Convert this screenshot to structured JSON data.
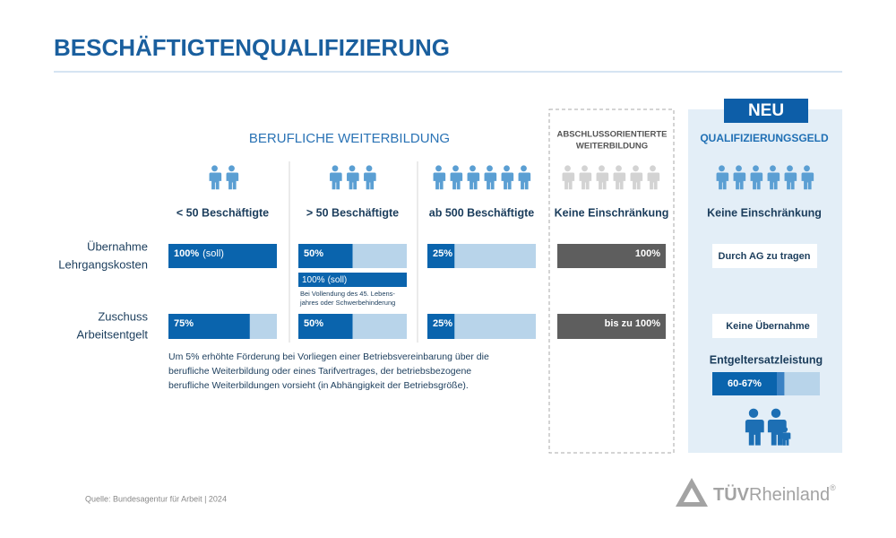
{
  "header": {
    "title": "BESCHÄFTIGTENQUALIFIZIERUNG"
  },
  "group_title": "BERUFLICHE WEITERBILDUNG",
  "row_labels": [
    [
      "Übernahme",
      "Lehrgangskosten"
    ],
    [
      "Zuschuss",
      "Arbeitsentgelt"
    ]
  ],
  "columns": [
    {
      "heading": "< 50 Beschäftigte",
      "costs": {
        "label": "100%",
        "note": "(soll)",
        "value": 100
      },
      "wage": {
        "label": "75%",
        "value": 75
      }
    },
    {
      "heading": "> 50 Beschäftigte",
      "costs": {
        "label": "50%",
        "value": 50
      },
      "costs_special": {
        "label": "100%",
        "note": "(soll)",
        "value": 100,
        "condition": [
          "Bei Vollendung des 45. Lebens-",
          "jahres oder Schwerbehinderung"
        ]
      },
      "wage": {
        "label": "50%",
        "value": 50
      }
    },
    {
      "heading": "ab 500 Beschäftigte",
      "costs": {
        "label": "25%",
        "value": 25
      },
      "wage": {
        "label": "25%",
        "value": 25
      }
    },
    {
      "title": [
        "ABSCHLUSSORIENTIERTE",
        "WEITERBILDUNG"
      ],
      "heading": "Keine Einschränkung",
      "costs": {
        "label": "100%",
        "value": 100
      },
      "wage": {
        "label": "bis zu 100%",
        "value": 100
      }
    }
  ],
  "qualifizierungsgeld": {
    "badge": "NEU",
    "title": "QUALIFIZIERUNGSGELD",
    "heading": "Keine Einschränkung",
    "costs": "Durch AG zu tragen",
    "wage": "Keine Übernahme",
    "benefit": {
      "title": "Entgeltersatzleistung",
      "label": "60-67%",
      "values": [
        60,
        67
      ]
    }
  },
  "footnote": [
    "Um 5% erhöhte Förderung bei Vorliegen einer Betriebsvereinbarung über die",
    "berufliche Weiterbildung oder eines Tarifvertrages, der betriebsbezogene",
    "berufliche Weiterbildungen vorsieht (in Abhängigkeit der Betriebsgröße)."
  ],
  "source": "Quelle: Bundesagentur für Arbeit | 2024",
  "logo": {
    "bold": "TÜV",
    "text": "Rheinland",
    "mark": "®"
  }
}
